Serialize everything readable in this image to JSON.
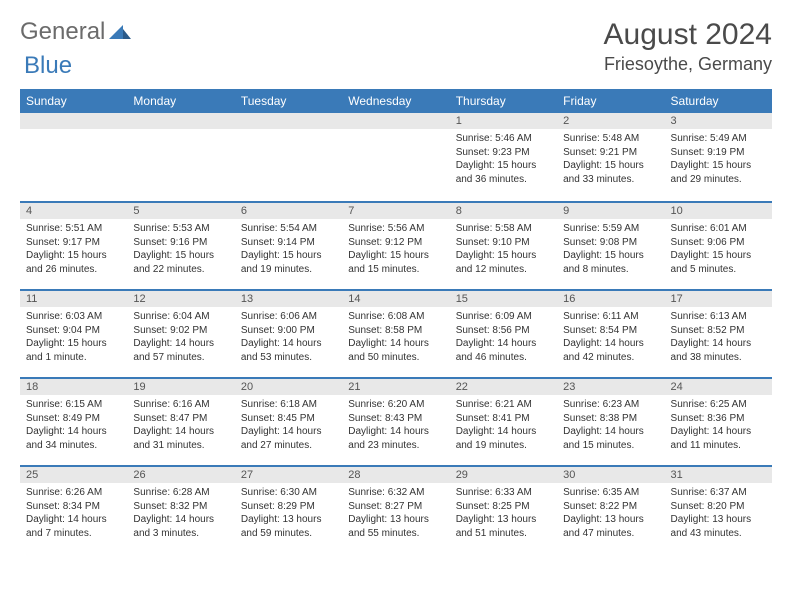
{
  "logo": {
    "text1": "General",
    "text2": "Blue"
  },
  "header": {
    "month": "August 2024",
    "location": "Friesoythe, Germany"
  },
  "colors": {
    "header_bg": "#3a7ab8",
    "header_text": "#ffffff",
    "daynum_bg": "#e8e8e8",
    "border": "#3a7ab8",
    "text": "#333333",
    "title_text": "#4a4a4a"
  },
  "weekdays": [
    "Sunday",
    "Monday",
    "Tuesday",
    "Wednesday",
    "Thursday",
    "Friday",
    "Saturday"
  ],
  "weeks": [
    [
      null,
      null,
      null,
      null,
      {
        "n": "1",
        "sr": "5:46 AM",
        "ss": "9:23 PM",
        "dl": "15 hours and 36 minutes."
      },
      {
        "n": "2",
        "sr": "5:48 AM",
        "ss": "9:21 PM",
        "dl": "15 hours and 33 minutes."
      },
      {
        "n": "3",
        "sr": "5:49 AM",
        "ss": "9:19 PM",
        "dl": "15 hours and 29 minutes."
      }
    ],
    [
      {
        "n": "4",
        "sr": "5:51 AM",
        "ss": "9:17 PM",
        "dl": "15 hours and 26 minutes."
      },
      {
        "n": "5",
        "sr": "5:53 AM",
        "ss": "9:16 PM",
        "dl": "15 hours and 22 minutes."
      },
      {
        "n": "6",
        "sr": "5:54 AM",
        "ss": "9:14 PM",
        "dl": "15 hours and 19 minutes."
      },
      {
        "n": "7",
        "sr": "5:56 AM",
        "ss": "9:12 PM",
        "dl": "15 hours and 15 minutes."
      },
      {
        "n": "8",
        "sr": "5:58 AM",
        "ss": "9:10 PM",
        "dl": "15 hours and 12 minutes."
      },
      {
        "n": "9",
        "sr": "5:59 AM",
        "ss": "9:08 PM",
        "dl": "15 hours and 8 minutes."
      },
      {
        "n": "10",
        "sr": "6:01 AM",
        "ss": "9:06 PM",
        "dl": "15 hours and 5 minutes."
      }
    ],
    [
      {
        "n": "11",
        "sr": "6:03 AM",
        "ss": "9:04 PM",
        "dl": "15 hours and 1 minute."
      },
      {
        "n": "12",
        "sr": "6:04 AM",
        "ss": "9:02 PM",
        "dl": "14 hours and 57 minutes."
      },
      {
        "n": "13",
        "sr": "6:06 AM",
        "ss": "9:00 PM",
        "dl": "14 hours and 53 minutes."
      },
      {
        "n": "14",
        "sr": "6:08 AM",
        "ss": "8:58 PM",
        "dl": "14 hours and 50 minutes."
      },
      {
        "n": "15",
        "sr": "6:09 AM",
        "ss": "8:56 PM",
        "dl": "14 hours and 46 minutes."
      },
      {
        "n": "16",
        "sr": "6:11 AM",
        "ss": "8:54 PM",
        "dl": "14 hours and 42 minutes."
      },
      {
        "n": "17",
        "sr": "6:13 AM",
        "ss": "8:52 PM",
        "dl": "14 hours and 38 minutes."
      }
    ],
    [
      {
        "n": "18",
        "sr": "6:15 AM",
        "ss": "8:49 PM",
        "dl": "14 hours and 34 minutes."
      },
      {
        "n": "19",
        "sr": "6:16 AM",
        "ss": "8:47 PM",
        "dl": "14 hours and 31 minutes."
      },
      {
        "n": "20",
        "sr": "6:18 AM",
        "ss": "8:45 PM",
        "dl": "14 hours and 27 minutes."
      },
      {
        "n": "21",
        "sr": "6:20 AM",
        "ss": "8:43 PM",
        "dl": "14 hours and 23 minutes."
      },
      {
        "n": "22",
        "sr": "6:21 AM",
        "ss": "8:41 PM",
        "dl": "14 hours and 19 minutes."
      },
      {
        "n": "23",
        "sr": "6:23 AM",
        "ss": "8:38 PM",
        "dl": "14 hours and 15 minutes."
      },
      {
        "n": "24",
        "sr": "6:25 AM",
        "ss": "8:36 PM",
        "dl": "14 hours and 11 minutes."
      }
    ],
    [
      {
        "n": "25",
        "sr": "6:26 AM",
        "ss": "8:34 PM",
        "dl": "14 hours and 7 minutes."
      },
      {
        "n": "26",
        "sr": "6:28 AM",
        "ss": "8:32 PM",
        "dl": "14 hours and 3 minutes."
      },
      {
        "n": "27",
        "sr": "6:30 AM",
        "ss": "8:29 PM",
        "dl": "13 hours and 59 minutes."
      },
      {
        "n": "28",
        "sr": "6:32 AM",
        "ss": "8:27 PM",
        "dl": "13 hours and 55 minutes."
      },
      {
        "n": "29",
        "sr": "6:33 AM",
        "ss": "8:25 PM",
        "dl": "13 hours and 51 minutes."
      },
      {
        "n": "30",
        "sr": "6:35 AM",
        "ss": "8:22 PM",
        "dl": "13 hours and 47 minutes."
      },
      {
        "n": "31",
        "sr": "6:37 AM",
        "ss": "8:20 PM",
        "dl": "13 hours and 43 minutes."
      }
    ]
  ],
  "labels": {
    "sunrise": "Sunrise:",
    "sunset": "Sunset:",
    "daylight": "Daylight:"
  }
}
